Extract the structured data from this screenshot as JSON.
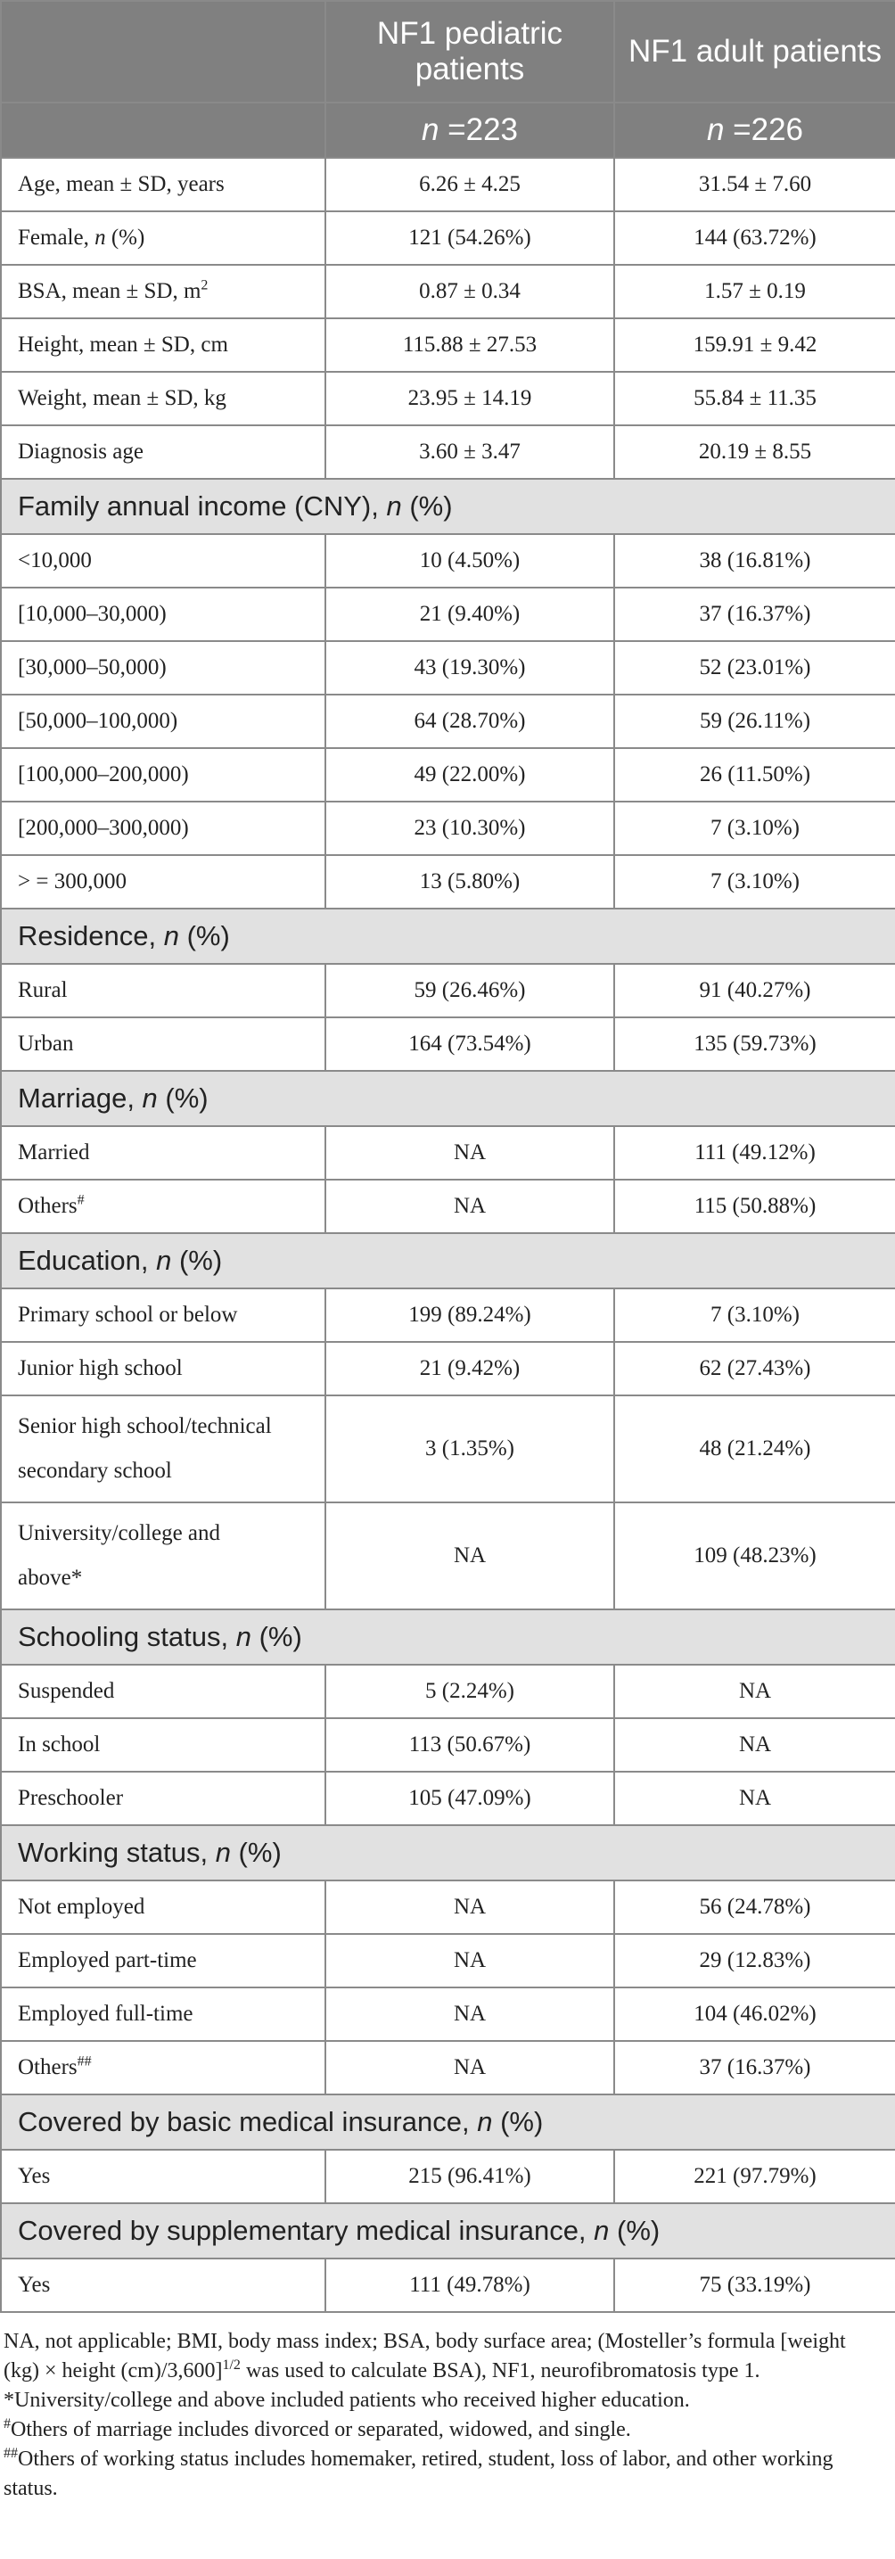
{
  "header": {
    "col2_title": "NF1 pediatric patients",
    "col3_title": "NF1 adult patients",
    "n_label": "n",
    "col2_n": "=223",
    "col3_n": "=226"
  },
  "rows_basic": [
    {
      "label": "Age, mean ± SD, years",
      "pediatric": "6.26 ± 4.25",
      "adult": "31.54 ± 7.60"
    },
    {
      "label_pre": "Female, ",
      "label_italic": "n",
      "label_post": " (%)",
      "pediatric": "121 (54.26%)",
      "adult": "144 (63.72%)"
    },
    {
      "label_pre": "BSA, mean ± SD, m",
      "label_sup": "2",
      "pediatric": "0.87 ± 0.34",
      "adult": "1.57 ± 0.19"
    },
    {
      "label": "Height, mean ± SD, cm",
      "pediatric": "115.88 ± 27.53",
      "adult": "159.91 ± 9.42"
    },
    {
      "label": "Weight, mean ± SD, kg",
      "pediatric": "23.95 ± 14.19",
      "adult": "55.84 ± 11.35"
    },
    {
      "label": "Diagnosis age",
      "pediatric": "3.60 ± 3.47",
      "adult": "20.19 ± 8.55"
    }
  ],
  "sections": {
    "income": {
      "title_pre": "Family annual income (CNY), ",
      "title_italic": "n",
      "title_post": " (%)",
      "rows": [
        {
          "label": "<10,000",
          "pediatric": "10 (4.50%)",
          "adult": "38 (16.81%)"
        },
        {
          "label": "[10,000–30,000)",
          "pediatric": "21 (9.40%)",
          "adult": "37 (16.37%)"
        },
        {
          "label": "[30,000–50,000)",
          "pediatric": "43 (19.30%)",
          "adult": "52 (23.01%)"
        },
        {
          "label": "[50,000–100,000)",
          "pediatric": "64 (28.70%)",
          "adult": "59 (26.11%)"
        },
        {
          "label": "[100,000–200,000)",
          "pediatric": "49 (22.00%)",
          "adult": "26 (11.50%)"
        },
        {
          "label": "[200,000–300,000)",
          "pediatric": "23 (10.30%)",
          "adult": "7 (3.10%)"
        },
        {
          "label": "> = 300,000",
          "pediatric": "13 (5.80%)",
          "adult": "7 (3.10%)"
        }
      ]
    },
    "residence": {
      "title_pre": "Residence, ",
      "title_italic": "n",
      "title_post": " (%)",
      "rows": [
        {
          "label": "Rural",
          "pediatric": "59 (26.46%)",
          "adult": "91 (40.27%)"
        },
        {
          "label": "Urban",
          "pediatric": "164 (73.54%)",
          "adult": "135 (59.73%)"
        }
      ]
    },
    "marriage": {
      "title_pre": "Marriage, ",
      "title_italic": "n",
      "title_post": " (%)",
      "rows": [
        {
          "label": "Married",
          "pediatric": "NA",
          "adult": "111 (49.12%)"
        },
        {
          "label": "Others",
          "sup": "#",
          "pediatric": "NA",
          "adult": "115 (50.88%)"
        }
      ]
    },
    "education": {
      "title_pre": "Education, ",
      "title_italic": "n",
      "title_post": " (%)",
      "rows": [
        {
          "label": "Primary school or below",
          "pediatric": "199 (89.24%)",
          "adult": "7 (3.10%)"
        },
        {
          "label": "Junior high school",
          "pediatric": "21 (9.42%)",
          "adult": "62 (27.43%)"
        },
        {
          "label_line1": "Senior high school/technical",
          "label_line2": "secondary school",
          "pediatric": "3 (1.35%)",
          "adult": "48 (21.24%)"
        },
        {
          "label_line1": "University/college and",
          "label_line2": "above*",
          "pediatric": "NA",
          "adult": "109 (48.23%)"
        }
      ]
    },
    "schooling": {
      "title_pre": "Schooling status, ",
      "title_italic": "n",
      "title_post": " (%)",
      "rows": [
        {
          "label": "Suspended",
          "pediatric": "5 (2.24%)",
          "adult": "NA"
        },
        {
          "label": "In school",
          "pediatric": "113 (50.67%)",
          "adult": "NA"
        },
        {
          "label": "Preschooler",
          "pediatric": "105 (47.09%)",
          "adult": "NA"
        }
      ]
    },
    "working": {
      "title_pre": "Working status, ",
      "title_italic": "n",
      "title_post": " (%)",
      "rows": [
        {
          "label": "Not employed",
          "pediatric": "NA",
          "adult": "56 (24.78%)"
        },
        {
          "label": "Employed part-time",
          "pediatric": "NA",
          "adult": "29 (12.83%)"
        },
        {
          "label": "Employed full-time",
          "pediatric": "NA",
          "adult": "104 (46.02%)"
        },
        {
          "label": "Others",
          "sup": "##",
          "pediatric": "NA",
          "adult": "37 (16.37%)"
        }
      ]
    },
    "basic_insurance": {
      "title_pre": "Covered by basic medical insurance, ",
      "title_italic": "n",
      "title_post": " (%)",
      "rows": [
        {
          "label": "Yes",
          "pediatric": "215 (96.41%)",
          "adult": "221 (97.79%)"
        }
      ]
    },
    "supp_insurance": {
      "title_pre": "Covered by supplementary medical insurance, ",
      "title_italic": "n",
      "title_post": " (%)",
      "rows": [
        {
          "label": "Yes",
          "pediatric": "111 (49.78%)",
          "adult": "75 (33.19%)"
        }
      ]
    }
  },
  "footnotes": {
    "line1_pre": "NA, not applicable; BMI, body mass index; BSA, body surface area; (Mosteller’s formula [weight (kg) × height (cm)/3,600]",
    "line1_sup": "1/2",
    "line1_post": " was used to calculate BSA), NF1, neurofibromatosis type 1.",
    "line2": "*University/college and above included patients who received higher education.",
    "line3_sup": "#",
    "line3": "Others of marriage includes divorced or separated, widowed, and single.",
    "line4_sup": "##",
    "line4": "Others of working status includes homemaker, retired, student, loss of labor, and other working status."
  }
}
